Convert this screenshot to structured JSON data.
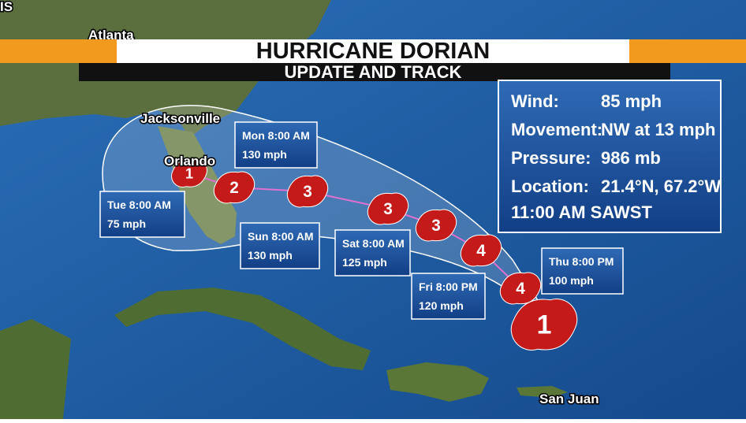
{
  "header": {
    "title": "HURRICANE DORIAN",
    "subtitle": "UPDATE AND TRACK"
  },
  "info": {
    "rows": [
      {
        "label": "Wind:",
        "value": "85 mph"
      },
      {
        "label": "Movement:",
        "value": "NW at 13 mph"
      },
      {
        "label": "Pressure:",
        "value": "986 mb"
      },
      {
        "label": "Location:",
        "value": "21.4°N, 67.2°W"
      }
    ],
    "time": "11:00 AM SAWST"
  },
  "places": [
    "IS",
    "Atlanta",
    "Jacksonville",
    "Orlando",
    "San Juan"
  ],
  "forecasts": [
    {
      "time": "Thu 8:00 PM",
      "wind": "100 mph"
    },
    {
      "time": "Fri 8:00 PM",
      "wind": "120 mph"
    },
    {
      "time": "Sat 8:00 AM",
      "wind": "125 mph"
    },
    {
      "time": "Sun 8:00 AM",
      "wind": "130 mph"
    },
    {
      "time": "Mon 8:00 AM",
      "wind": "130 mph"
    },
    {
      "time": "Tue 8:00 AM",
      "wind": "75 mph"
    }
  ],
  "track": [
    {
      "category": 1
    },
    {
      "category": 4
    },
    {
      "category": 4
    },
    {
      "category": 3
    },
    {
      "category": 3
    },
    {
      "category": 3
    },
    {
      "category": 2
    },
    {
      "category": 1
    }
  ]
}
